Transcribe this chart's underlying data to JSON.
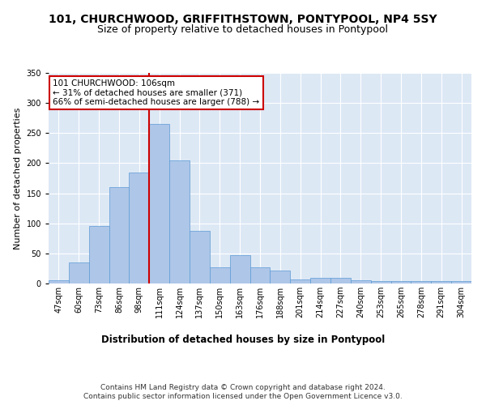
{
  "title1": "101, CHURCHWOOD, GRIFFITHSTOWN, PONTYPOOL, NP4 5SY",
  "title2": "Size of property relative to detached houses in Pontypool",
  "xlabel": "Distribution of detached houses by size in Pontypool",
  "ylabel": "Number of detached properties",
  "categories": [
    "47sqm",
    "60sqm",
    "73sqm",
    "86sqm",
    "98sqm",
    "111sqm",
    "124sqm",
    "137sqm",
    "150sqm",
    "163sqm",
    "176sqm",
    "188sqm",
    "201sqm",
    "214sqm",
    "227sqm",
    "240sqm",
    "253sqm",
    "265sqm",
    "278sqm",
    "291sqm",
    "304sqm"
  ],
  "values": [
    6,
    35,
    95,
    160,
    185,
    265,
    205,
    88,
    27,
    47,
    27,
    22,
    7,
    9,
    9,
    5,
    4,
    4,
    4,
    4,
    4
  ],
  "bar_color": "#aec6e8",
  "bar_edgecolor": "#5b9bd5",
  "background_color": "#dde8f5",
  "grid_color": "#ffffff",
  "vline_x_idx": 4.5,
  "vline_color": "#cc0000",
  "annotation_line1": "101 CHURCHWOOD: 106sqm",
  "annotation_line2": "← 31% of detached houses are smaller (371)",
  "annotation_line3": "66% of semi-detached houses are larger (788) →",
  "annotation_box_color": "#ffffff",
  "annotation_box_edgecolor": "#cc0000",
  "footer1": "Contains HM Land Registry data © Crown copyright and database right 2024.",
  "footer2": "Contains public sector information licensed under the Open Government Licence v3.0.",
  "ylim": [
    0,
    350
  ],
  "yticks": [
    0,
    50,
    100,
    150,
    200,
    250,
    300,
    350
  ],
  "title1_fontsize": 10,
  "title2_fontsize": 9,
  "xlabel_fontsize": 8.5,
  "ylabel_fontsize": 8,
  "tick_fontsize": 7,
  "annotation_fontsize": 7.5,
  "footer_fontsize": 6.5
}
